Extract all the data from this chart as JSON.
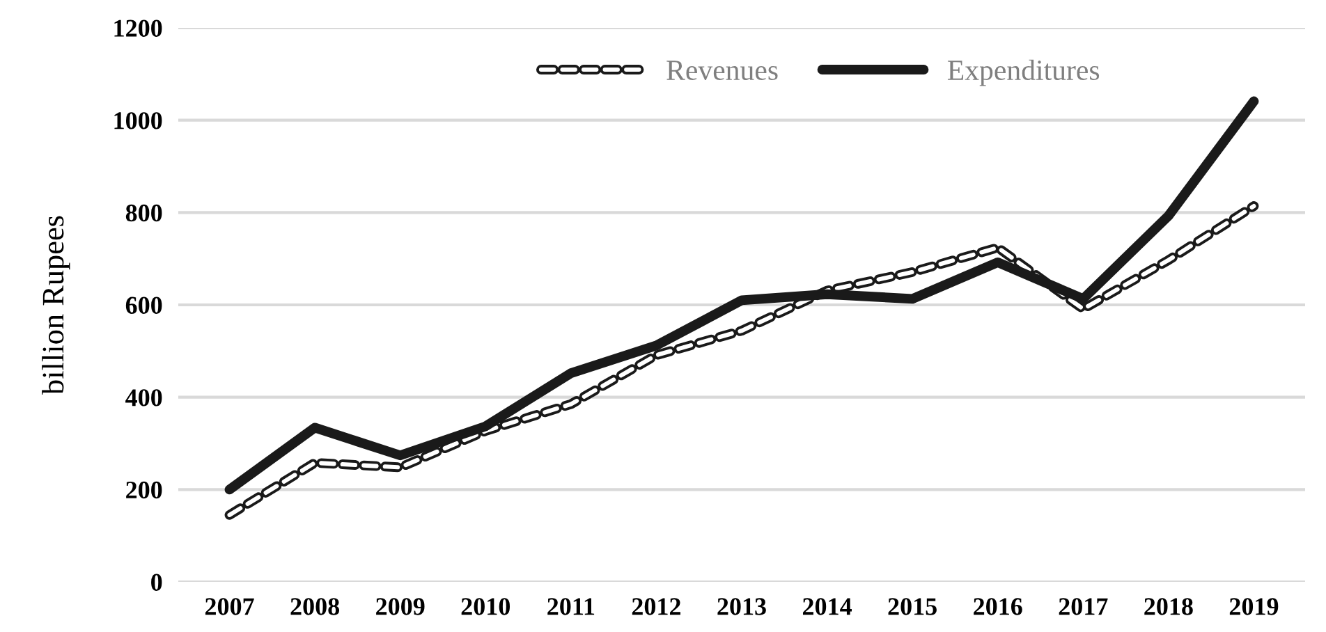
{
  "chart_data": {
    "type": "line",
    "ylabel": "billion Rupees",
    "categories": [
      "2007",
      "2008",
      "2009",
      "2010",
      "2011",
      "2012",
      "2013",
      "2014",
      "2015",
      "2016",
      "2017",
      "2018",
      "2019"
    ],
    "series": [
      {
        "name": "Revenues",
        "color": "#1a1a1a",
        "line_style": "dashed",
        "values": [
          145,
          258,
          248,
          327,
          385,
          491,
          544,
          631,
          671,
          724,
          591,
          697,
          814
        ]
      },
      {
        "name": "Expenditures",
        "color": "#1a1a1a",
        "line_style": "solid",
        "values": [
          200,
          334,
          274,
          337,
          452,
          512,
          610,
          623,
          613,
          692,
          613,
          793,
          1041
        ]
      }
    ],
    "ylim": [
      0,
      1200
    ],
    "yticks": [
      0,
      200,
      400,
      600,
      800,
      1000,
      1200
    ],
    "grid": "y",
    "legend": "top",
    "marker": "none"
  }
}
